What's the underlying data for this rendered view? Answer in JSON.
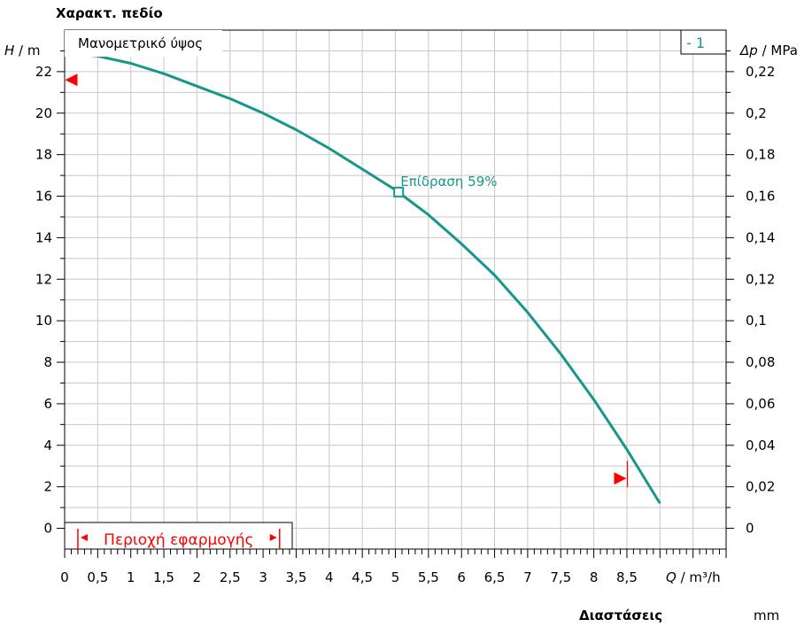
{
  "header": {
    "title": "Χαρακτ. πεδίο"
  },
  "footer": {
    "dimensions_label": "Διαστάσεις",
    "dimensions_unit": "mm"
  },
  "chart_data": {
    "type": "line",
    "title": "Χαρακτ. πεδίο",
    "y_axis_left": {
      "symbol": "H",
      "unit": "m",
      "range": [
        -1,
        24
      ],
      "ticks": [
        0,
        2,
        4,
        6,
        8,
        10,
        12,
        14,
        16,
        18,
        20,
        22
      ]
    },
    "y_axis_right": {
      "symbol": "Δp",
      "unit": "MPa",
      "ticks": [
        "0",
        "0,02",
        "0,04",
        "0,06",
        "0,08",
        "0,1",
        "0,12",
        "0,14",
        "0,16",
        "0,18",
        "0,2",
        "0,22"
      ]
    },
    "x_axis": {
      "symbol": "Q",
      "unit": "m³/h",
      "range": [
        0,
        10
      ],
      "tick_labels": [
        "0",
        "0,5",
        "1",
        "1,5",
        "2",
        "2,5",
        "3",
        "3,5",
        "4",
        "4,5",
        "5",
        "5,5",
        "6",
        "6,5",
        "7",
        "7,5",
        "8",
        "8,5"
      ]
    },
    "grid": true,
    "curve_label": "Μανομετρικό ύψος",
    "legend": "top-right",
    "series": [
      {
        "name": "- 1",
        "color": "#16978a",
        "x": [
          0,
          0.5,
          1,
          1.5,
          2,
          2.5,
          3,
          3.5,
          4,
          4.5,
          5,
          5.5,
          6,
          6.5,
          7,
          7.5,
          8,
          8.5,
          9
        ],
        "y": [
          22.9,
          22.75,
          22.4,
          21.9,
          21.3,
          20.7,
          20.0,
          19.2,
          18.3,
          17.3,
          16.3,
          15.1,
          13.7,
          12.2,
          10.4,
          8.4,
          6.2,
          3.8,
          1.2
        ]
      }
    ],
    "efficiency_marker": {
      "x": 5.05,
      "y": 16.2,
      "label": "Επίδραση  59%"
    },
    "limit_markers": [
      {
        "x": 0.1,
        "y": 21.6,
        "direction": "left"
      },
      {
        "x": 8.4,
        "y": 2.4,
        "direction": "right"
      }
    ],
    "application_range": {
      "label": "Περιοχή εφαρμογής",
      "from": 0.2,
      "to": 3.25,
      "color": "#ff0000"
    }
  }
}
